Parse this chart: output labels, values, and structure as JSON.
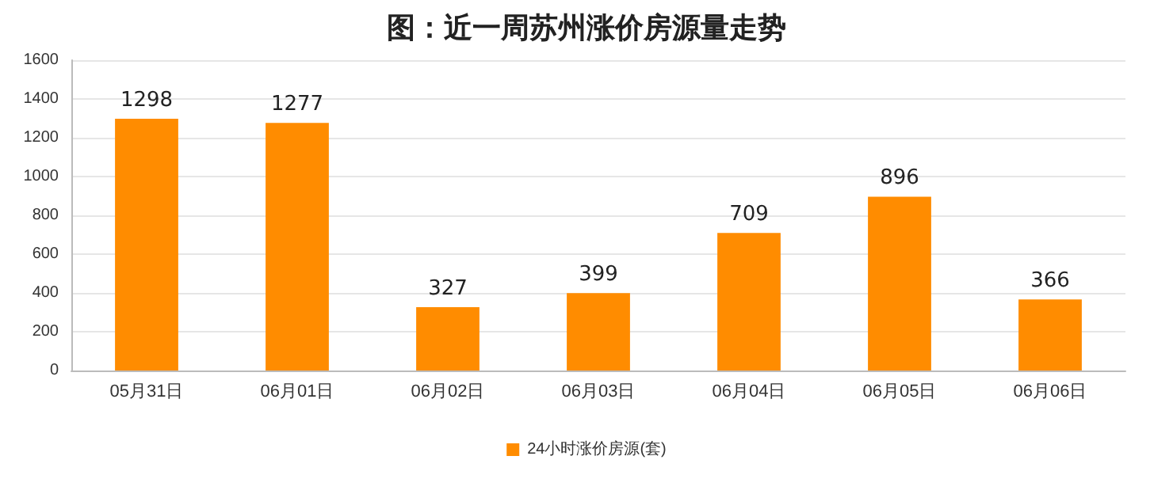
{
  "chart_data": {
    "type": "bar",
    "title": "图：近一周苏州涨价房源量走势",
    "categories": [
      "05月31日",
      "06月01日",
      "06月02日",
      "06月03日",
      "06月04日",
      "06月05日",
      "06月06日"
    ],
    "series": [
      {
        "name": "24小时涨价房源(套)",
        "color": "#ff8c00",
        "values": [
          1298,
          1277,
          327,
          399,
          709,
          896,
          366
        ]
      }
    ],
    "ylim": [
      0,
      1600
    ],
    "yticks": [
      0,
      200,
      400,
      600,
      800,
      1000,
      1200,
      1400,
      1600
    ],
    "grid": "y",
    "legend": "bottom",
    "data_labels": true
  }
}
